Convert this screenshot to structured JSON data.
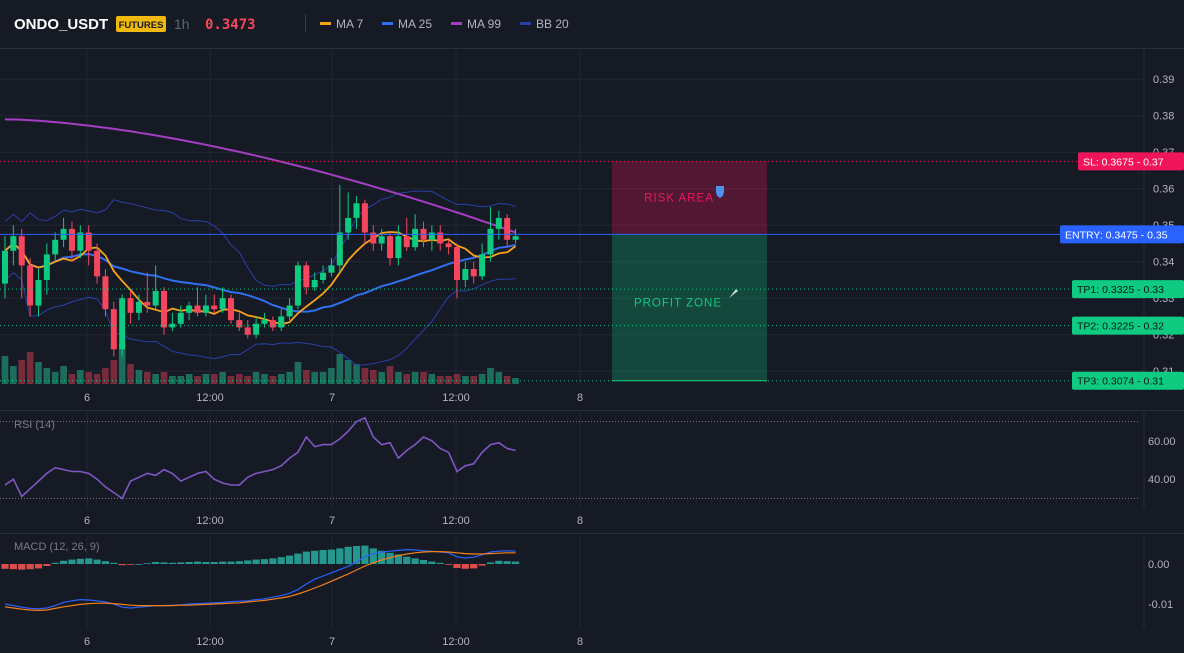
{
  "header": {
    "symbol": "ONDO_USDT",
    "market_badge": "FUTURES",
    "interval": "1h",
    "last_price": "0.3473",
    "legend": [
      {
        "label": "MA 7",
        "color": "#f7a21b"
      },
      {
        "label": "MA 25",
        "color": "#2f6ff0"
      },
      {
        "label": "MA 99",
        "color": "#a43ec2"
      },
      {
        "label": "BB 20",
        "color": "#2a3fa8"
      }
    ]
  },
  "colors": {
    "background": "#161a25",
    "up": "#0ecb81",
    "down": "#f6465d",
    "grid": "#232735",
    "entry": "#2962ff",
    "sl": "#f0145a",
    "tp": "#0ecb81",
    "rsi": "#7e57c2",
    "macd": "#2962ff",
    "signal": "#f57f17"
  },
  "chart_data": [
    {
      "type": "candlestick",
      "title": "ONDO_USDT",
      "x_tick_labels": [
        "6",
        "12:00",
        "7",
        "12:00",
        "8"
      ],
      "ylim": [
        0.3065,
        0.398
      ],
      "y_tick_labels": [
        "0.39",
        "0.38",
        "0.37",
        "0.36",
        "0.35",
        "0.34",
        "0.33",
        "0.32",
        "0.31"
      ],
      "y_ticks": [
        0.39,
        0.38,
        0.37,
        0.36,
        0.35,
        0.34,
        0.33,
        0.32,
        0.31
      ],
      "candles": [
        [
          0.334,
          0.343,
          0.347,
          0.33
        ],
        [
          0.343,
          0.347,
          0.35,
          0.339
        ],
        [
          0.347,
          0.339,
          0.349,
          0.33
        ],
        [
          0.339,
          0.328,
          0.341,
          0.325
        ],
        [
          0.328,
          0.335,
          0.338,
          0.325
        ],
        [
          0.335,
          0.342,
          0.345,
          0.331
        ],
        [
          0.342,
          0.346,
          0.348,
          0.34
        ],
        [
          0.346,
          0.349,
          0.352,
          0.344
        ],
        [
          0.349,
          0.343,
          0.351,
          0.34
        ],
        [
          0.343,
          0.348,
          0.35,
          0.341
        ],
        [
          0.348,
          0.343,
          0.35,
          0.339
        ],
        [
          0.343,
          0.336,
          0.345,
          0.334
        ],
        [
          0.336,
          0.327,
          0.338,
          0.325
        ],
        [
          0.327,
          0.316,
          0.329,
          0.314
        ],
        [
          0.316,
          0.33,
          0.331,
          0.314
        ],
        [
          0.33,
          0.326,
          0.332,
          0.323
        ],
        [
          0.326,
          0.329,
          0.331,
          0.324
        ],
        [
          0.329,
          0.328,
          0.337,
          0.326
        ],
        [
          0.328,
          0.332,
          0.339,
          0.327
        ],
        [
          0.332,
          0.322,
          0.333,
          0.32
        ],
        [
          0.322,
          0.323,
          0.326,
          0.321
        ],
        [
          0.323,
          0.326,
          0.328,
          0.322
        ],
        [
          0.326,
          0.328,
          0.329,
          0.324
        ],
        [
          0.328,
          0.326,
          0.333,
          0.325
        ],
        [
          0.326,
          0.328,
          0.331,
          0.325
        ],
        [
          0.328,
          0.327,
          0.331,
          0.326
        ],
        [
          0.327,
          0.33,
          0.333,
          0.326
        ],
        [
          0.33,
          0.324,
          0.331,
          0.323
        ],
        [
          0.324,
          0.322,
          0.326,
          0.321
        ],
        [
          0.322,
          0.32,
          0.324,
          0.319
        ],
        [
          0.32,
          0.323,
          0.325,
          0.319
        ],
        [
          0.323,
          0.324,
          0.326,
          0.322
        ],
        [
          0.324,
          0.322,
          0.325,
          0.321
        ],
        [
          0.322,
          0.325,
          0.327,
          0.321
        ],
        [
          0.325,
          0.328,
          0.33,
          0.324
        ],
        [
          0.328,
          0.339,
          0.34,
          0.327
        ],
        [
          0.339,
          0.333,
          0.34,
          0.331
        ],
        [
          0.333,
          0.335,
          0.337,
          0.332
        ],
        [
          0.335,
          0.337,
          0.339,
          0.334
        ],
        [
          0.337,
          0.339,
          0.341,
          0.336
        ],
        [
          0.339,
          0.348,
          0.361,
          0.337
        ],
        [
          0.348,
          0.352,
          0.359,
          0.346
        ],
        [
          0.352,
          0.356,
          0.358,
          0.349
        ],
        [
          0.356,
          0.348,
          0.357,
          0.345
        ],
        [
          0.348,
          0.345,
          0.35,
          0.343
        ],
        [
          0.345,
          0.347,
          0.349,
          0.343
        ],
        [
          0.347,
          0.341,
          0.348,
          0.339
        ],
        [
          0.341,
          0.347,
          0.35,
          0.339
        ],
        [
          0.347,
          0.344,
          0.352,
          0.343
        ],
        [
          0.344,
          0.349,
          0.353,
          0.343
        ],
        [
          0.349,
          0.346,
          0.351,
          0.344
        ],
        [
          0.346,
          0.348,
          0.35,
          0.343
        ],
        [
          0.348,
          0.345,
          0.35,
          0.343
        ],
        [
          0.345,
          0.344,
          0.346,
          0.342
        ],
        [
          0.344,
          0.335,
          0.345,
          0.33
        ],
        [
          0.335,
          0.338,
          0.34,
          0.333
        ],
        [
          0.338,
          0.336,
          0.34,
          0.334
        ],
        [
          0.336,
          0.342,
          0.345,
          0.335
        ],
        [
          0.342,
          0.349,
          0.355,
          0.34
        ],
        [
          0.349,
          0.352,
          0.354,
          0.346
        ],
        [
          0.352,
          0.346,
          0.353,
          0.344
        ],
        [
          0.346,
          0.347,
          0.349,
          0.345
        ]
      ],
      "volumes": [
        14,
        9,
        12,
        16,
        11,
        8,
        6,
        9,
        5,
        7,
        6,
        5,
        8,
        12,
        20,
        10,
        7,
        6,
        5,
        6,
        4,
        4,
        5,
        4,
        5,
        5,
        6,
        4,
        5,
        4,
        6,
        5,
        4,
        5,
        6,
        11,
        7,
        6,
        6,
        8,
        15,
        12,
        10,
        8,
        7,
        6,
        9,
        6,
        5,
        6,
        6,
        5,
        4,
        4,
        5,
        4,
        4,
        5,
        8,
        6,
        4,
        3
      ],
      "annotations": {
        "sl_label": "SL: 0.3675",
        "sl_axis": "0.37",
        "sl_value": 0.3675,
        "entry_label": "ENTRY: 0.3475",
        "entry_axis": "0.35",
        "entry_value": 0.3475,
        "tp": [
          {
            "label": "TP1: 0.3325",
            "axis": "0.33",
            "value": 0.3325
          },
          {
            "label": "TP2: 0.3225",
            "axis": "0.32",
            "value": 0.3225
          },
          {
            "label": "TP3: 0.3074",
            "axis": "0.31",
            "value": 0.3074
          }
        ],
        "risk_label": "RISK AREA",
        "profit_label": "PROFIT ZONE"
      }
    },
    {
      "type": "line",
      "title": "RSI (14)",
      "ylim": [
        25,
        75
      ],
      "y_tick_labels": [
        "60.00",
        "40.00"
      ],
      "y_ticks": [
        60,
        40
      ],
      "bands": [
        70,
        30
      ],
      "values": [
        37,
        40,
        31,
        35,
        39,
        43,
        46,
        45,
        44,
        44,
        43,
        40,
        36,
        33,
        30,
        39,
        41,
        43,
        42,
        45,
        43,
        39,
        41,
        43,
        44,
        40,
        38,
        37,
        37,
        41,
        43,
        44,
        45,
        47,
        51,
        54,
        62,
        57,
        58,
        58,
        61,
        65,
        70,
        72,
        62,
        58,
        59,
        51,
        55,
        58,
        62,
        60,
        56,
        54,
        44,
        47,
        48,
        54,
        58,
        59,
        56,
        55
      ]
    },
    {
      "type": "bar",
      "title": "MACD (12, 26, 9)",
      "ylim": [
        -0.016,
        0.007
      ],
      "y_tick_labels": [
        "0.00",
        "-0.01"
      ],
      "y_ticks": [
        0.0,
        -0.01
      ],
      "hist": [
        -0.0012,
        -0.0013,
        -0.0014,
        -0.0013,
        -0.0011,
        -0.0005,
        0.0003,
        0.0008,
        0.0011,
        0.0013,
        0.0014,
        0.0011,
        0.0007,
        0.0003,
        -0.0003,
        -0.0002,
        0.0,
        0.0002,
        0.0005,
        0.0004,
        0.0003,
        0.0004,
        0.0005,
        0.0006,
        0.0005,
        0.0005,
        0.0006,
        0.0006,
        0.0007,
        0.0009,
        0.0011,
        0.0012,
        0.0014,
        0.0017,
        0.0021,
        0.0026,
        0.0031,
        0.0033,
        0.0035,
        0.0036,
        0.0039,
        0.0043,
        0.0045,
        0.0046,
        0.0039,
        0.0033,
        0.0028,
        0.0024,
        0.0018,
        0.0014,
        0.001,
        0.0006,
        0.0003,
        -0.0002,
        -0.001,
        -0.0012,
        -0.0011,
        -0.0004,
        0.0004,
        0.0008,
        0.0007,
        0.0006
      ],
      "macd": [
        -0.01,
        -0.0104,
        -0.0108,
        -0.0111,
        -0.0112,
        -0.011,
        -0.0104,
        -0.0096,
        -0.0092,
        -0.0089,
        -0.009,
        -0.0092,
        -0.0095,
        -0.01,
        -0.0108,
        -0.011,
        -0.0108,
        -0.0106,
        -0.0104,
        -0.0104,
        -0.0103,
        -0.0102,
        -0.01,
        -0.0099,
        -0.0098,
        -0.0097,
        -0.0096,
        -0.0094,
        -0.0093,
        -0.0092,
        -0.0089,
        -0.0087,
        -0.0083,
        -0.0079,
        -0.0073,
        -0.0064,
        -0.005,
        -0.0038,
        -0.003,
        -0.0022,
        -0.0014,
        -0.0006,
        0.0005,
        0.0018,
        0.0026,
        0.003,
        0.0032,
        0.0034,
        0.0036,
        0.0035,
        0.0033,
        0.0032,
        0.003,
        0.0028,
        0.0018,
        0.0015,
        0.0017,
        0.0023,
        0.003,
        0.0032,
        0.0033,
        0.0032
      ],
      "signal": [
        -0.0107,
        -0.011,
        -0.0113,
        -0.0115,
        -0.0116,
        -0.0115,
        -0.0111,
        -0.0107,
        -0.0104,
        -0.0101,
        -0.0099,
        -0.0098,
        -0.0098,
        -0.0099,
        -0.0101,
        -0.0103,
        -0.0104,
        -0.0104,
        -0.0104,
        -0.0104,
        -0.0104,
        -0.0103,
        -0.0103,
        -0.0102,
        -0.0101,
        -0.01,
        -0.0099,
        -0.0098,
        -0.0097,
        -0.0095,
        -0.0093,
        -0.0091,
        -0.0088,
        -0.0085,
        -0.0081,
        -0.0075,
        -0.0068,
        -0.006,
        -0.0052,
        -0.0043,
        -0.0034,
        -0.0025,
        -0.0015,
        -0.0005,
        0.0003,
        0.001,
        0.0016,
        0.0021,
        0.0025,
        0.0028,
        0.003,
        0.0031,
        0.0031,
        0.003,
        0.0028,
        0.0026,
        0.0025,
        0.0025,
        0.0026,
        0.0027,
        0.0028,
        0.0028
      ]
    }
  ]
}
